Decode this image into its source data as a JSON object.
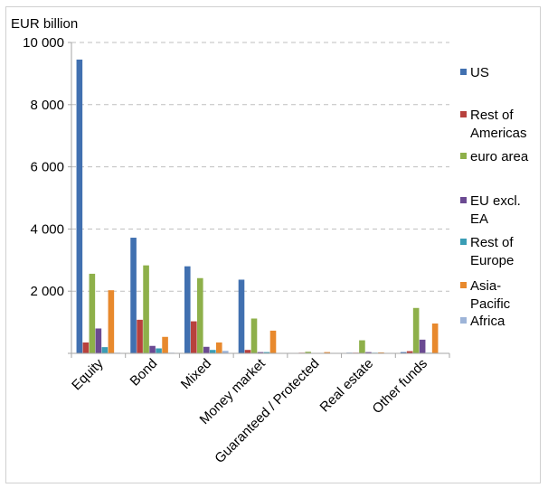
{
  "chart_data": {
    "type": "bar",
    "ylabel": "EUR billion",
    "ylim": [
      0,
      10000
    ],
    "yticks": [
      {
        "value": 0,
        "label": ""
      },
      {
        "value": 2000,
        "label": "2 000"
      },
      {
        "value": 4000,
        "label": "4 000"
      },
      {
        "value": 6000,
        "label": "6 000"
      },
      {
        "value": 8000,
        "label": "8 000"
      },
      {
        "value": 10000,
        "label": "10 000"
      }
    ],
    "grid": true,
    "legend_position": "right",
    "categories": [
      "Equity",
      "Bond",
      "Mixed",
      "Money market",
      "Guaranteed / Protected",
      "Real estate",
      "Other funds"
    ],
    "series": [
      {
        "name": "US",
        "label_lines": [
          "US"
        ],
        "color": "#4170b0",
        "values": [
          9450,
          3720,
          2800,
          2370,
          10,
          20,
          40
        ]
      },
      {
        "name": "Rest of Americas",
        "label_lines": [
          "Rest of",
          "Americas"
        ],
        "color": "#b8413d",
        "values": [
          350,
          1080,
          1030,
          110,
          20,
          20,
          70
        ]
      },
      {
        "name": "euro area",
        "label_lines": [
          "euro area"
        ],
        "color": "#8eb04a",
        "values": [
          2560,
          2830,
          2420,
          1120,
          50,
          420,
          1460
        ]
      },
      {
        "name": "EU excl. EA",
        "label_lines": [
          "EU excl.",
          "EA"
        ],
        "color": "#6b4a92",
        "values": [
          800,
          240,
          210,
          40,
          10,
          40,
          440
        ]
      },
      {
        "name": "Rest of Europe",
        "label_lines": [
          "Rest of",
          "Europe"
        ],
        "color": "#3a9db5",
        "values": [
          200,
          160,
          110,
          40,
          10,
          20,
          20
        ]
      },
      {
        "name": "Asia-Pacific",
        "label_lines": [
          "Asia-",
          "Pacific"
        ],
        "color": "#e8892d",
        "values": [
          2030,
          530,
          350,
          730,
          40,
          30,
          960
        ]
      },
      {
        "name": "Africa",
        "label_lines": [
          "Africa"
        ],
        "color": "#9db4d8",
        "values": [
          20,
          20,
          80,
          10,
          5,
          5,
          10
        ]
      }
    ]
  }
}
